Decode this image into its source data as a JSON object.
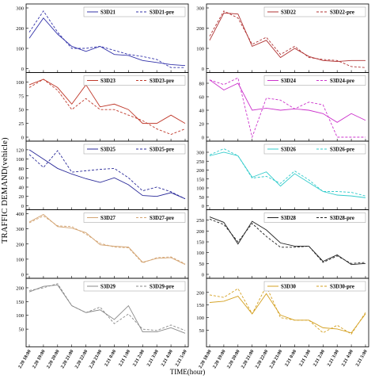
{
  "chart_data": {
    "type": "line",
    "ylabel": "TRAFFIC DEMAND(vehicle)",
    "xlabel": "TIME(hour)",
    "x": [
      "2.20 18:00",
      "2.20 19:00",
      "2.20 20:00",
      "2.20 21:00",
      "2.20 22:00",
      "2.20 23:00",
      "2.21 0:00",
      "2.21 1:00",
      "2.21 2:00",
      "2.21 3:00",
      "2.21 4:00",
      "2.21 5:00"
    ],
    "subplots": [
      {
        "id": "S3D21",
        "color": "#3333aa",
        "ylim": [
          0,
          300
        ],
        "yticks": [
          0,
          100,
          200,
          300
        ],
        "series": [
          {
            "name": "S3D21",
            "values": [
              150,
              250,
              170,
              110,
              85,
              110,
              70,
              65,
              40,
              30,
              20,
              15
            ]
          },
          {
            "name": "S3D21-pre",
            "values": [
              180,
              285,
              180,
              100,
              100,
              110,
              90,
              70,
              60,
              45,
              5,
              5
            ]
          }
        ]
      },
      {
        "id": "S3D22",
        "color": "#b03333",
        "ylim": [
          0,
          300
        ],
        "yticks": [
          0,
          100,
          200,
          300
        ],
        "series": [
          {
            "name": "S3D22",
            "values": [
              140,
              275,
              270,
              110,
              140,
              55,
              100,
              60,
              40,
              35,
              40,
              40
            ]
          },
          {
            "name": "S3D22-pre",
            "values": [
              160,
              285,
              250,
              120,
              155,
              70,
              110,
              55,
              45,
              40,
              10,
              5
            ]
          }
        ]
      },
      {
        "id": "S3D23",
        "color": "#c0392b",
        "ylim": [
          0,
          110
        ],
        "yticks": [
          0,
          25,
          50,
          75,
          100
        ],
        "series": [
          {
            "name": "S3D23",
            "values": [
              95,
              105,
              90,
              60,
              95,
              55,
              60,
              50,
              25,
              25,
              40,
              25
            ]
          },
          {
            "name": "S3D23-pre",
            "values": [
              90,
              105,
              85,
              50,
              70,
              50,
              50,
              40,
              30,
              15,
              5,
              15
            ]
          }
        ]
      },
      {
        "id": "S3D24",
        "color": "#cc33cc",
        "ylim": [
          0,
          90
        ],
        "yticks": [
          0,
          20,
          40,
          60,
          80
        ],
        "series": [
          {
            "name": "S3D24",
            "values": [
              85,
              70,
              80,
              40,
              43,
              40,
              42,
              40,
              35,
              22,
              35,
              25
            ]
          },
          {
            "name": "S3D24-pre",
            "values": [
              85,
              78,
              88,
              0,
              58,
              55,
              42,
              52,
              48,
              0,
              0,
              0
            ]
          }
        ]
      },
      {
        "id": "S3D25",
        "color": "#2a2a99",
        "ylim": [
          0,
          130
        ],
        "yticks": [
          0,
          20,
          40,
          60,
          80,
          100,
          120
        ],
        "series": [
          {
            "name": "S3D25",
            "values": [
              120,
              100,
              80,
              68,
              58,
              50,
              60,
              45,
              22,
              20,
              28,
              15
            ]
          },
          {
            "name": "S3D25-pre",
            "values": [
              110,
              82,
              118,
              72,
              75,
              78,
              80,
              60,
              32,
              40,
              30,
              15
            ]
          }
        ]
      },
      {
        "id": "S3D26",
        "color": "#33cccc",
        "ylim": [
          0,
          340
        ],
        "yticks": [
          0,
          50,
          100,
          150,
          200,
          250,
          300
        ],
        "series": [
          {
            "name": "S3D26",
            "values": [
              280,
              300,
              280,
              160,
              190,
              110,
              180,
              130,
              80,
              60,
              55,
              45
            ]
          },
          {
            "name": "S3D26-pre",
            "values": [
              285,
              320,
              280,
              155,
              165,
              125,
              195,
              145,
              80,
              80,
              75,
              55
            ]
          }
        ]
      },
      {
        "id": "S3D27",
        "color": "#d4a574",
        "ylim": [
          0,
          400
        ],
        "yticks": [
          0,
          100,
          200,
          300,
          400
        ],
        "series": [
          {
            "name": "S3D27",
            "values": [
              345,
              395,
              315,
              305,
              275,
              195,
              185,
              180,
              80,
              105,
              110,
              65
            ]
          },
          {
            "name": "S3D27-pre",
            "values": [
              340,
              385,
              320,
              315,
              265,
              205,
              180,
              175,
              75,
              110,
              115,
              70
            ]
          }
        ]
      },
      {
        "id": "S3D28",
        "color": "#222222",
        "ylim": [
          0,
          280
        ],
        "yticks": [
          0,
          50,
          100,
          150,
          200,
          250
        ],
        "series": [
          {
            "name": "S3D28",
            "values": [
              265,
              240,
              140,
              245,
              205,
              145,
              130,
              130,
              60,
              90,
              45,
              50
            ]
          },
          {
            "name": "S3D28-pre",
            "values": [
              255,
              230,
              150,
              235,
              175,
              125,
              125,
              130,
              55,
              85,
              50,
              55
            ]
          }
        ]
      },
      {
        "id": "S3D29",
        "color": "#888888",
        "ylim": [
          0,
          220
        ],
        "yticks": [
          50,
          100,
          150,
          200
        ],
        "series": [
          {
            "name": "S3D29",
            "values": [
              185,
              205,
              210,
              135,
              110,
              120,
              85,
              135,
              40,
              40,
              55,
              35
            ]
          },
          {
            "name": "S3D29-pre",
            "values": [
              190,
              200,
              215,
              135,
              110,
              130,
              70,
              105,
              50,
              45,
              65,
              45
            ]
          }
        ]
      },
      {
        "id": "S3D30",
        "color": "#d4a020",
        "ylim": [
          0,
          240
        ],
        "yticks": [
          50,
          100,
          150,
          200
        ],
        "series": [
          {
            "name": "S3D30",
            "values": [
              160,
              165,
              185,
              115,
              195,
              110,
              90,
              90,
              60,
              55,
              40,
              115
            ]
          },
          {
            "name": "S3D30-pre",
            "values": [
              190,
              180,
              215,
              115,
              225,
              100,
              90,
              90,
              40,
              70,
              35,
              120
            ]
          }
        ]
      }
    ]
  }
}
